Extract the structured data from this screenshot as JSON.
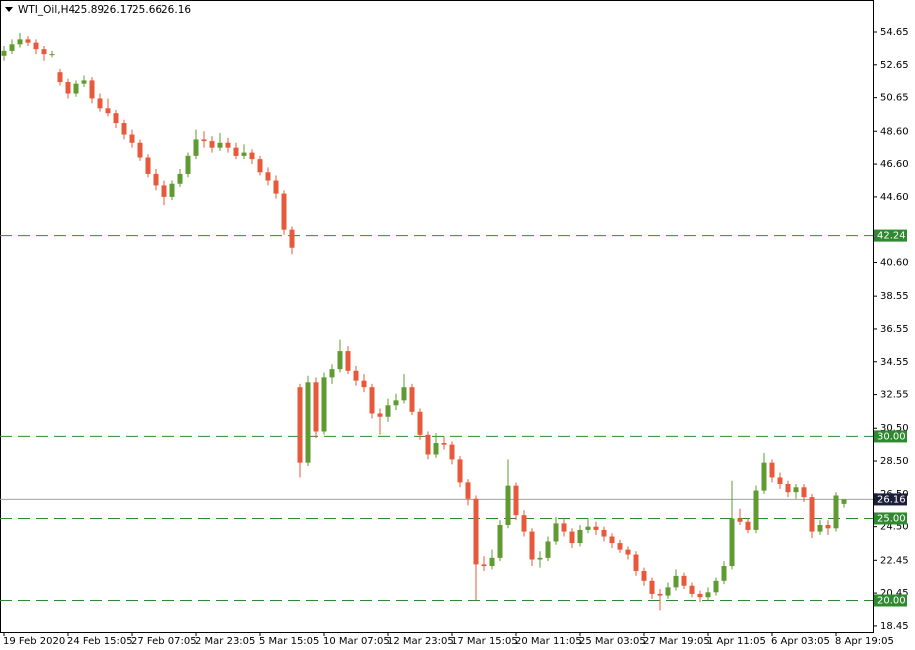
{
  "chart_data": {
    "type": "candlestick",
    "title": "WTI_Oil,H4",
    "categories": [
      "19 Feb 2020",
      null,
      null,
      null,
      null,
      null,
      null,
      null,
      "24 Feb 15:05",
      null,
      null,
      null,
      null,
      null,
      null,
      null,
      "27 Feb 07:05",
      null,
      null,
      null,
      null,
      null,
      null,
      null,
      "2 Mar 23:05",
      null,
      null,
      null,
      null,
      null,
      null,
      null,
      "5 Mar 15:05",
      null,
      null,
      null,
      null,
      null,
      null,
      null,
      "10 Mar 07:05",
      null,
      null,
      null,
      null,
      null,
      null,
      null,
      "12 Mar 23:05",
      null,
      null,
      null,
      null,
      null,
      null,
      null,
      "17 Mar 15:05",
      null,
      null,
      null,
      null,
      null,
      null,
      null,
      "20 Mar 11:05",
      null,
      null,
      null,
      null,
      null,
      null,
      null,
      "25 Mar 03:05",
      null,
      null,
      null,
      null,
      null,
      null,
      null,
      "27 Mar 19:05",
      null,
      null,
      null,
      null,
      null,
      null,
      null,
      "1 Apr 11:05",
      null,
      null,
      null,
      null,
      null,
      null,
      null,
      "6 Apr 03:05",
      null,
      null,
      null,
      null,
      null,
      null,
      null,
      "8 Apr 19:05",
      null
    ],
    "open": [
      53.2,
      53.5,
      53.9,
      54.2,
      54.0,
      53.6,
      53.3,
      52.2,
      51.6,
      50.9,
      51.5,
      51.7,
      50.6,
      50.0,
      49.7,
      49.1,
      48.4,
      47.9,
      47.0,
      46.0,
      45.3,
      44.6,
      45.4,
      46.0,
      47.1,
      48.1,
      48.0,
      47.6,
      47.9,
      47.6,
      47.1,
      47.3,
      46.9,
      46.1,
      45.6,
      44.8,
      42.6,
      33.0,
      28.4,
      33.3,
      30.3,
      33.6,
      34.1,
      35.2,
      34.0,
      33.4,
      33.0,
      31.4,
      31.2,
      31.9,
      32.2,
      33.0,
      31.5,
      30.1,
      28.9,
      29.6,
      29.5,
      28.6,
      27.2,
      26.2,
      22.2,
      22.1,
      22.6,
      24.6,
      27.0,
      25.2,
      24.2,
      22.5,
      22.6,
      23.6,
      24.7,
      24.2,
      23.5,
      24.3,
      24.5,
      24.3,
      23.9,
      23.5,
      23.1,
      22.8,
      21.8,
      21.2,
      20.4,
      20.3,
      20.8,
      21.5,
      20.9,
      20.4,
      20.2,
      20.5,
      21.2,
      22.1,
      25.0,
      24.8,
      24.3,
      26.7,
      28.4,
      27.5,
      27.1,
      26.6,
      26.9,
      26.3,
      24.2,
      24.6,
      24.4,
      25.89
    ],
    "high": [
      53.8,
      54.2,
      54.6,
      54.4,
      54.2,
      53.8,
      53.5,
      52.4,
      51.8,
      51.7,
      52.0,
      51.9,
      50.9,
      50.6,
      49.9,
      49.3,
      48.7,
      48.1,
      47.2,
      46.3,
      45.6,
      45.6,
      46.3,
      47.3,
      48.7,
      48.6,
      48.3,
      48.5,
      48.2,
      47.9,
      47.8,
      47.5,
      47.1,
      46.4,
      45.9,
      45.0,
      42.8,
      33.2,
      33.7,
      33.6,
      33.9,
      34.4,
      35.9,
      35.5,
      34.3,
      33.8,
      33.2,
      31.7,
      32.3,
      32.6,
      33.8,
      33.2,
      31.7,
      30.3,
      30.2,
      30.0,
      29.7,
      28.8,
      27.4,
      26.4,
      22.7,
      23.1,
      24.9,
      28.6,
      27.2,
      25.5,
      24.4,
      23.0,
      23.9,
      25.1,
      25.0,
      24.4,
      24.6,
      25.0,
      24.8,
      24.5,
      24.1,
      23.7,
      23.3,
      23.0,
      22.0,
      21.4,
      20.7,
      21.1,
      21.9,
      21.7,
      21.1,
      20.6,
      20.8,
      21.4,
      22.4,
      27.3,
      25.6,
      25.0,
      27.0,
      29.0,
      28.6,
      27.8,
      27.3,
      27.1,
      27.1,
      26.5,
      24.9,
      24.9,
      26.6,
      26.17
    ],
    "low": [
      52.9,
      53.3,
      53.7,
      53.8,
      53.3,
      52.9,
      53.1,
      51.4,
      50.6,
      50.7,
      51.3,
      50.3,
      49.8,
      49.5,
      48.8,
      48.1,
      47.6,
      46.8,
      45.8,
      45.0,
      44.1,
      44.4,
      45.2,
      45.8,
      46.9,
      47.6,
      47.3,
      47.4,
      47.3,
      46.9,
      46.9,
      46.6,
      45.9,
      45.3,
      44.5,
      42.3,
      41.1,
      27.5,
      28.2,
      29.9,
      30.1,
      33.2,
      33.9,
      33.8,
      33.1,
      32.7,
      31.1,
      30.1,
      30.9,
      31.6,
      32.0,
      31.3,
      29.8,
      28.6,
      28.7,
      29.2,
      28.3,
      26.9,
      25.8,
      20.0,
      21.8,
      21.9,
      22.4,
      24.4,
      24.9,
      23.9,
      22.1,
      22.0,
      22.4,
      23.4,
      23.9,
      23.2,
      23.3,
      24.1,
      24.0,
      23.6,
      23.2,
      22.9,
      22.5,
      21.5,
      20.9,
      20.1,
      19.4,
      20.1,
      20.6,
      20.7,
      20.2,
      19.9,
      20.0,
      20.3,
      21.0,
      21.9,
      24.6,
      24.1,
      24.1,
      26.5,
      27.2,
      26.8,
      26.3,
      26.2,
      26.0,
      23.8,
      24.0,
      24.0,
      24.2,
      25.66
    ],
    "close": [
      53.5,
      53.9,
      54.2,
      54.0,
      53.6,
      53.3,
      53.3,
      51.6,
      50.9,
      51.5,
      51.7,
      50.6,
      50.0,
      49.7,
      49.1,
      48.4,
      47.9,
      47.0,
      46.0,
      45.3,
      44.6,
      45.4,
      46.0,
      47.1,
      48.1,
      48.0,
      47.6,
      47.9,
      47.6,
      47.1,
      47.3,
      46.9,
      46.1,
      45.6,
      44.8,
      42.6,
      41.5,
      28.4,
      33.3,
      30.3,
      33.6,
      34.1,
      35.2,
      34.0,
      33.4,
      33.0,
      31.4,
      31.2,
      31.9,
      32.2,
      33.0,
      31.5,
      30.1,
      28.9,
      29.6,
      29.5,
      28.6,
      27.2,
      26.2,
      22.2,
      22.1,
      22.6,
      24.6,
      27.0,
      25.2,
      24.2,
      22.5,
      22.6,
      23.6,
      24.7,
      24.2,
      23.5,
      24.3,
      24.5,
      24.3,
      23.9,
      23.5,
      23.1,
      22.8,
      21.8,
      21.2,
      20.4,
      20.3,
      20.8,
      21.5,
      20.9,
      20.4,
      20.2,
      20.5,
      21.2,
      22.1,
      25.0,
      24.8,
      24.3,
      26.7,
      28.4,
      27.5,
      27.1,
      26.6,
      26.9,
      26.3,
      24.2,
      24.6,
      24.4,
      26.4,
      26.16
    ],
    "ylim": [
      18.08,
      56.6
    ],
    "yticks": [
      54.65,
      52.65,
      50.65,
      {
        "value": 48.6,
        "label": "48.60"
      },
      {
        "value": 46.6,
        "label": "46.60"
      },
      {
        "value": 44.6,
        "label": "44.60"
      },
      {
        "value": 40.6,
        "label": "40.60"
      },
      38.55,
      36.55,
      34.55,
      32.55,
      {
        "value": 30.5,
        "label": "30.50"
      },
      {
        "value": 28.5,
        "label": "28.50"
      },
      {
        "value": 26.5,
        "label": "26.50"
      },
      {
        "value": 24.5,
        "label": "24.50"
      },
      22.45,
      20.45,
      18.45
    ],
    "levels": [
      {
        "value": 42.24,
        "label": "42.24"
      },
      {
        "value": 30,
        "label": "30.00"
      },
      {
        "value": 25,
        "label": "25.00"
      },
      {
        "value": 20,
        "label": "20.00"
      }
    ],
    "price_line": {
      "value": 26.16,
      "label": "26.16"
    },
    "up_color": "#5f9b30",
    "down_color": "#e8583a",
    "level_color": "#2f8a2f",
    "price_line_color": "#a0a0a0"
  }
}
